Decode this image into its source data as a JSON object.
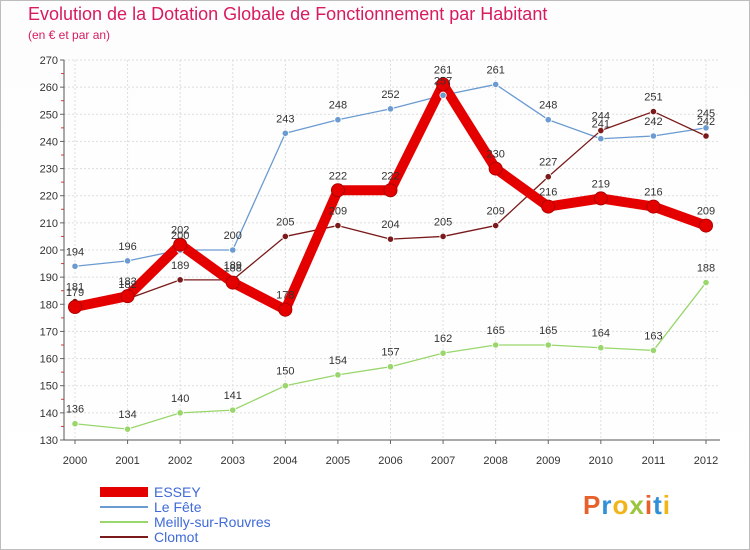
{
  "title": "Evolution de la Dotation Globale de Fonctionnement par Habitant",
  "subtitle": "(en € et par an)",
  "logo": {
    "text": "Proxiti",
    "colors": [
      "#e8612c",
      "#2f8fd8",
      "#f2b418",
      "#9bc53d",
      "#e8612c",
      "#2f8fd8",
      "#f2b418"
    ]
  },
  "chart_data": {
    "type": "line",
    "title": "Evolution de la Dotation Globale de Fonctionnement par Habitant",
    "subtitle": "(en € et par an)",
    "xlabel": "",
    "ylabel": "",
    "ylim": [
      130,
      270
    ],
    "yticks": [
      130,
      140,
      150,
      160,
      170,
      180,
      190,
      200,
      210,
      220,
      230,
      240,
      250,
      260,
      270
    ],
    "categories": [
      "2000",
      "2001",
      "2002",
      "2003",
      "2004",
      "2005",
      "2006",
      "2007",
      "2008",
      "2009",
      "2010",
      "2011",
      "2012"
    ],
    "series": [
      {
        "name": "ESSEY",
        "color": "#e50000",
        "values": [
          179,
          183,
          202,
          188,
          178,
          222,
          222,
          261,
          230,
          216,
          219,
          216,
          209
        ]
      },
      {
        "name": "Le Fête",
        "color": "#6b9bd1",
        "values": [
          194,
          196,
          200,
          200,
          243,
          248,
          252,
          257,
          261,
          248,
          241,
          242,
          245
        ]
      },
      {
        "name": "Meilly-sur-Rouvres",
        "color": "#99d66b",
        "values": [
          136,
          134,
          140,
          141,
          150,
          154,
          157,
          162,
          165,
          165,
          164,
          163,
          188
        ]
      },
      {
        "name": "Clomot",
        "color": "#7a1a1a",
        "values": [
          181,
          182,
          189,
          189,
          205,
          209,
          204,
          205,
          209,
          227,
          244,
          251,
          242
        ]
      }
    ]
  }
}
